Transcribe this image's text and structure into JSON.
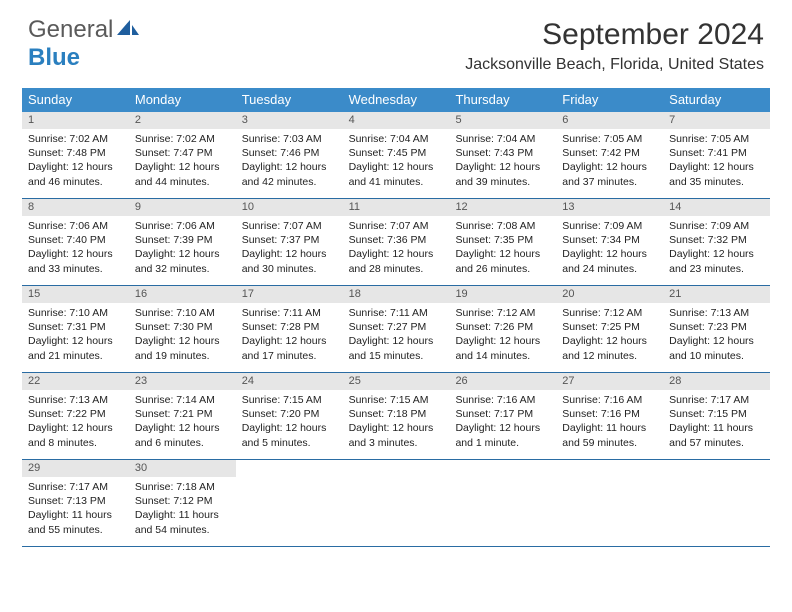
{
  "logo": {
    "part1": "General",
    "part2": "Blue"
  },
  "title": "September 2024",
  "location": "Jacksonville Beach, Florida, United States",
  "colors": {
    "header_bg": "#3b8bc9",
    "header_text": "#ffffff",
    "daynum_bg": "#e6e6e6",
    "week_border": "#2a6ca3",
    "logo_gray": "#5a5a5a",
    "logo_blue": "#2a7fbf"
  },
  "weekdays": [
    "Sunday",
    "Monday",
    "Tuesday",
    "Wednesday",
    "Thursday",
    "Friday",
    "Saturday"
  ],
  "days": [
    {
      "n": "1",
      "sunrise": "7:02 AM",
      "sunset": "7:48 PM",
      "daylight": "12 hours and 46 minutes."
    },
    {
      "n": "2",
      "sunrise": "7:02 AM",
      "sunset": "7:47 PM",
      "daylight": "12 hours and 44 minutes."
    },
    {
      "n": "3",
      "sunrise": "7:03 AM",
      "sunset": "7:46 PM",
      "daylight": "12 hours and 42 minutes."
    },
    {
      "n": "4",
      "sunrise": "7:04 AM",
      "sunset": "7:45 PM",
      "daylight": "12 hours and 41 minutes."
    },
    {
      "n": "5",
      "sunrise": "7:04 AM",
      "sunset": "7:43 PM",
      "daylight": "12 hours and 39 minutes."
    },
    {
      "n": "6",
      "sunrise": "7:05 AM",
      "sunset": "7:42 PM",
      "daylight": "12 hours and 37 minutes."
    },
    {
      "n": "7",
      "sunrise": "7:05 AM",
      "sunset": "7:41 PM",
      "daylight": "12 hours and 35 minutes."
    },
    {
      "n": "8",
      "sunrise": "7:06 AM",
      "sunset": "7:40 PM",
      "daylight": "12 hours and 33 minutes."
    },
    {
      "n": "9",
      "sunrise": "7:06 AM",
      "sunset": "7:39 PM",
      "daylight": "12 hours and 32 minutes."
    },
    {
      "n": "10",
      "sunrise": "7:07 AM",
      "sunset": "7:37 PM",
      "daylight": "12 hours and 30 minutes."
    },
    {
      "n": "11",
      "sunrise": "7:07 AM",
      "sunset": "7:36 PM",
      "daylight": "12 hours and 28 minutes."
    },
    {
      "n": "12",
      "sunrise": "7:08 AM",
      "sunset": "7:35 PM",
      "daylight": "12 hours and 26 minutes."
    },
    {
      "n": "13",
      "sunrise": "7:09 AM",
      "sunset": "7:34 PM",
      "daylight": "12 hours and 24 minutes."
    },
    {
      "n": "14",
      "sunrise": "7:09 AM",
      "sunset": "7:32 PM",
      "daylight": "12 hours and 23 minutes."
    },
    {
      "n": "15",
      "sunrise": "7:10 AM",
      "sunset": "7:31 PM",
      "daylight": "12 hours and 21 minutes."
    },
    {
      "n": "16",
      "sunrise": "7:10 AM",
      "sunset": "7:30 PM",
      "daylight": "12 hours and 19 minutes."
    },
    {
      "n": "17",
      "sunrise": "7:11 AM",
      "sunset": "7:28 PM",
      "daylight": "12 hours and 17 minutes."
    },
    {
      "n": "18",
      "sunrise": "7:11 AM",
      "sunset": "7:27 PM",
      "daylight": "12 hours and 15 minutes."
    },
    {
      "n": "19",
      "sunrise": "7:12 AM",
      "sunset": "7:26 PM",
      "daylight": "12 hours and 14 minutes."
    },
    {
      "n": "20",
      "sunrise": "7:12 AM",
      "sunset": "7:25 PM",
      "daylight": "12 hours and 12 minutes."
    },
    {
      "n": "21",
      "sunrise": "7:13 AM",
      "sunset": "7:23 PM",
      "daylight": "12 hours and 10 minutes."
    },
    {
      "n": "22",
      "sunrise": "7:13 AM",
      "sunset": "7:22 PM",
      "daylight": "12 hours and 8 minutes."
    },
    {
      "n": "23",
      "sunrise": "7:14 AM",
      "sunset": "7:21 PM",
      "daylight": "12 hours and 6 minutes."
    },
    {
      "n": "24",
      "sunrise": "7:15 AM",
      "sunset": "7:20 PM",
      "daylight": "12 hours and 5 minutes."
    },
    {
      "n": "25",
      "sunrise": "7:15 AM",
      "sunset": "7:18 PM",
      "daylight": "12 hours and 3 minutes."
    },
    {
      "n": "26",
      "sunrise": "7:16 AM",
      "sunset": "7:17 PM",
      "daylight": "12 hours and 1 minute."
    },
    {
      "n": "27",
      "sunrise": "7:16 AM",
      "sunset": "7:16 PM",
      "daylight": "11 hours and 59 minutes."
    },
    {
      "n": "28",
      "sunrise": "7:17 AM",
      "sunset": "7:15 PM",
      "daylight": "11 hours and 57 minutes."
    },
    {
      "n": "29",
      "sunrise": "7:17 AM",
      "sunset": "7:13 PM",
      "daylight": "11 hours and 55 minutes."
    },
    {
      "n": "30",
      "sunrise": "7:18 AM",
      "sunset": "7:12 PM",
      "daylight": "11 hours and 54 minutes."
    }
  ],
  "labels": {
    "sunrise": "Sunrise: ",
    "sunset": "Sunset: ",
    "daylight": "Daylight: "
  },
  "layout": {
    "start_weekday": 0,
    "days_in_month": 30,
    "columns": 7
  }
}
